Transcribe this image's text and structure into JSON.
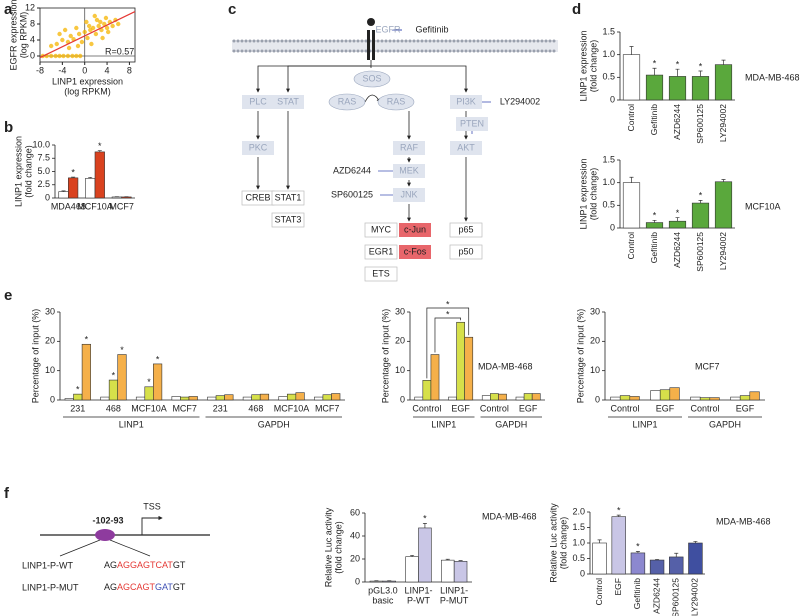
{
  "panels": [
    "a",
    "b",
    "c",
    "d",
    "e",
    "f"
  ],
  "chart_data": [
    {
      "type": "scatter",
      "xlabel": [
        "LINP1 expression",
        "(log RPKM)"
      ],
      "ylabel": [
        "EGFR expression",
        "(log RPKM)"
      ],
      "annotation": "R=0.57",
      "x": [
        -7.5,
        -6.8,
        -6,
        -5.2,
        -4.5,
        -3.8,
        -3,
        -2.2,
        -1.5,
        -0.8,
        -6,
        -5,
        -4,
        -3,
        -2.5,
        -2,
        -1,
        0,
        0.5,
        1,
        1.5,
        2,
        2.5,
        3,
        3.5,
        4,
        4.5,
        5,
        5.5,
        6,
        -1.5,
        -0.5,
        0.3,
        1.2,
        2.2,
        3.2,
        4.2,
        -3.5,
        -2.8,
        1.8,
        2.8,
        -4.5,
        -1.2,
        0.8,
        3.8
      ],
      "y": [
        0,
        0,
        0,
        0,
        0,
        0,
        0,
        0,
        0,
        0,
        2.5,
        3,
        4,
        3.5,
        5,
        4.2,
        5.5,
        6,
        4.5,
        6.5,
        7,
        5.5,
        7.5,
        6.5,
        8,
        7,
        8.5,
        7.5,
        9,
        8,
        7,
        3.5,
        8.5,
        3,
        9,
        4.5,
        6,
        6.5,
        2,
        10,
        8.5,
        5.5,
        2.5,
        7.5,
        9.5
      ],
      "color": "#f5b400",
      "trend_color": "#e53935",
      "xlim": [
        -8,
        9
      ],
      "ylim": [
        -1.5,
        12
      ],
      "xticks": [
        -8,
        -4,
        0,
        4,
        8
      ],
      "yticks": [
        0,
        4,
        8,
        12
      ]
    },
    {
      "type": "bar",
      "ylabel": [
        "LINP1 expression",
        "(fold change)"
      ],
      "categories": [
        "MDA468",
        "MCF10A",
        "MCF7"
      ],
      "series": [
        {
          "color": "#ffffff",
          "values": [
            1.2,
            3.7,
            0.2
          ],
          "errors": [
            0.15,
            0.2,
            0.05
          ]
        },
        {
          "color": "#d9421f",
          "values": [
            3.8,
            8.7,
            0.2
          ],
          "errors": [
            0.15,
            0.25,
            0.05
          ],
          "stars": [
            "*",
            "*",
            null
          ]
        }
      ],
      "ylim": [
        0,
        10
      ],
      "yticks": [
        0,
        2.5,
        {
          "value": 5,
          "label": "5.0"
        },
        7.5,
        {
          "value": 10,
          "label": "10.0"
        }
      ]
    },
    {
      "type": "bar",
      "annotation": "MDA-MB-468",
      "ylabel": [
        "LINP1 expression",
        "(fold change)"
      ],
      "rotate_labels": true,
      "categories": [
        "Control",
        "Gefitinib",
        "AZD6244",
        "SP600125",
        "LY294002"
      ],
      "series": [
        {
          "colors": [
            "#ffffff",
            "#5aa83c",
            "#5aa83c",
            "#5aa83c",
            "#5aa83c"
          ],
          "values": [
            1.0,
            0.55,
            0.52,
            0.52,
            0.78
          ],
          "errors": [
            0.18,
            0.15,
            0.16,
            0.12,
            0.1
          ],
          "stars": [
            null,
            "*",
            "*",
            "*",
            null
          ]
        }
      ],
      "ylim": [
        0,
        1.5
      ],
      "yticks": [
        0,
        0.5,
        {
          "value": 1,
          "label": "1.0"
        },
        1.5
      ]
    },
    {
      "type": "bar",
      "annotation": "MCF10A",
      "ylabel": [
        "LINP1 expression",
        "(fold change)"
      ],
      "rotate_labels": true,
      "categories": [
        "Control",
        "Gefitinib",
        "AZD6244",
        "SP600125",
        "LY294002"
      ],
      "series": [
        {
          "colors": [
            "#ffffff",
            "#5aa83c",
            "#5aa83c",
            "#5aa83c",
            "#5aa83c"
          ],
          "values": [
            1.0,
            0.12,
            0.15,
            0.55,
            1.02
          ],
          "errors": [
            0.12,
            0.05,
            0.08,
            0.06,
            0.05
          ],
          "stars": [
            null,
            "*",
            "*",
            "*",
            null
          ]
        }
      ],
      "ylim": [
        0,
        1.5
      ],
      "yticks": [
        0,
        0.5,
        {
          "value": 1,
          "label": "1.0"
        },
        1.5
      ]
    },
    {
      "type": "bar",
      "ylabel": [
        "Percentage of input (%)"
      ],
      "categories": [
        "231",
        "468",
        "MCF10A",
        "MCF7",
        "231",
        "468",
        "MCF10A",
        "MCF7"
      ],
      "groups": [
        "LINP1",
        "GAPDH"
      ],
      "series": [
        {
          "color": "#ffffff",
          "values": [
            0.5,
            1,
            1,
            1.2,
            1,
            1,
            1.2,
            1
          ]
        },
        {
          "color": "#d6e04a",
          "values": [
            2,
            6.8,
            4.5,
            1,
            1.5,
            1.8,
            2,
            1.8
          ],
          "stars": [
            "*",
            "*",
            "*",
            null,
            null,
            null,
            null,
            null
          ]
        },
        {
          "color": "#f5b04a",
          "values": [
            19,
            15.5,
            12.3,
            1.2,
            1.8,
            2,
            2.5,
            2.2
          ],
          "stars": [
            "*",
            "*",
            "*",
            null,
            null,
            null,
            null,
            null
          ]
        }
      ],
      "ylim": [
        0,
        30
      ],
      "yticks": [
        0,
        10,
        20,
        30
      ]
    },
    {
      "type": "bar",
      "annotation": "MDA-MB-468",
      "ylabel": [
        "Percentage of input (%)"
      ],
      "categories": [
        "Control",
        "EGF",
        "Control",
        "EGF"
      ],
      "groups": [
        "LINP1",
        "GAPDH"
      ],
      "series": [
        {
          "color": "#ffffff",
          "values": [
            1,
            1,
            1.5,
            1
          ]
        },
        {
          "color": "#d6e04a",
          "values": [
            6.7,
            26.5,
            2.2,
            2.2
          ]
        },
        {
          "color": "#f5b04a",
          "values": [
            15.5,
            21.4,
            2,
            2.2
          ]
        }
      ],
      "bracket_stars": [
        "*",
        "*"
      ],
      "ylim": [
        0,
        30
      ],
      "yticks": [
        0,
        10,
        20,
        30
      ]
    },
    {
      "type": "bar",
      "annotation": "MCF7",
      "ylabel": [
        "Percentage of input (%)"
      ],
      "categories": [
        "Control",
        "EGF",
        "Control",
        "EGF"
      ],
      "groups": [
        "LINP1",
        "GAPDH"
      ],
      "series": [
        {
          "color": "#ffffff",
          "values": [
            1,
            3.2,
            1,
            1
          ]
        },
        {
          "color": "#d6e04a",
          "values": [
            1.5,
            3.5,
            0.8,
            1.5
          ]
        },
        {
          "color": "#f5b04a",
          "values": [
            1.2,
            4.2,
            0.8,
            2.8
          ]
        }
      ],
      "ylim": [
        0,
        30
      ],
      "yticks": [
        0,
        10,
        20,
        30
      ]
    },
    {
      "type": "bar",
      "annotation": "MDA-MB-468",
      "ylabel": [
        "Relative Luc activity",
        "(fold change)"
      ],
      "categories": [
        [
          "pGL3.0",
          "basic"
        ],
        [
          "LINP1-",
          "P-WT"
        ],
        [
          "LINP1-",
          "P-MUT"
        ]
      ],
      "series": [
        {
          "color": "#ffffff",
          "values": [
            0.8,
            22,
            19
          ],
          "errors": [
            0.3,
            1.2,
            0.8
          ]
        },
        {
          "color": "#c9c6e6",
          "values": [
            0.8,
            47,
            18
          ],
          "errors": [
            0.3,
            4,
            0.6
          ],
          "stars": [
            null,
            "*",
            null
          ]
        }
      ],
      "ylim": [
        0,
        60
      ],
      "yticks": [
        0,
        20,
        40,
        60
      ]
    },
    {
      "type": "bar",
      "annotation": "MDA-MB-468",
      "ylabel": [
        "Relative Luc activity",
        "(fold change)"
      ],
      "rotate_labels": true,
      "categories": [
        "Control",
        "EGF",
        "Gefitinib",
        "AZD6244",
        "SP600125",
        "LY294002"
      ],
      "series": [
        {
          "colors": [
            "#ffffff",
            "#c9c6e6",
            "#8c88cf",
            "#5560a8",
            "#5560a8",
            "#3f4fa0"
          ],
          "values": [
            1.0,
            1.85,
            0.68,
            0.45,
            0.55,
            1.0
          ],
          "errors": [
            0.1,
            0.05,
            0.05,
            0.02,
            0.12,
            0.05
          ],
          "stars": [
            null,
            "*",
            "*",
            null,
            null,
            null
          ]
        }
      ],
      "ylim": [
        0,
        2
      ],
      "yticks": [
        0,
        0.5,
        {
          "value": 1,
          "label": "1.0"
        },
        1.5,
        {
          "value": 2,
          "label": "2.0"
        }
      ]
    }
  ],
  "pathway": {
    "nodes": [
      "EGFR",
      "Gefitinib",
      "PLC",
      "STAT",
      "SOS",
      "RAS",
      "RAS",
      "PI3K",
      "LY294002",
      "RAF",
      "PTEN",
      "PKC",
      "AZD6244",
      "MEK",
      "AKT",
      "SP600125",
      "JNK",
      "CREB",
      "STAT1",
      "STAT3",
      "MYC",
      "c-Jun",
      "p65",
      "EGR1",
      "c-Fos",
      "p50",
      "ETS"
    ]
  },
  "promoter": {
    "site": "-102-93",
    "tss": "TSS",
    "constructs": [
      {
        "name": "LINP1-P-WT",
        "sequence": [
          {
            "text": "AG",
            "color": "#222222"
          },
          {
            "text": "AGGAGTCAT",
            "color": "#e53935"
          },
          {
            "text": "GT",
            "color": "#222222"
          }
        ]
      },
      {
        "name": "LINP1-P-MUT",
        "sequence": [
          {
            "text": "AG",
            "color": "#222222"
          },
          {
            "text": "AGCAGT",
            "color": "#e53935"
          },
          {
            "text": "GAT",
            "color": "#3f51b5"
          },
          {
            "text": "GT",
            "color": "#222222"
          }
        ]
      }
    ]
  }
}
